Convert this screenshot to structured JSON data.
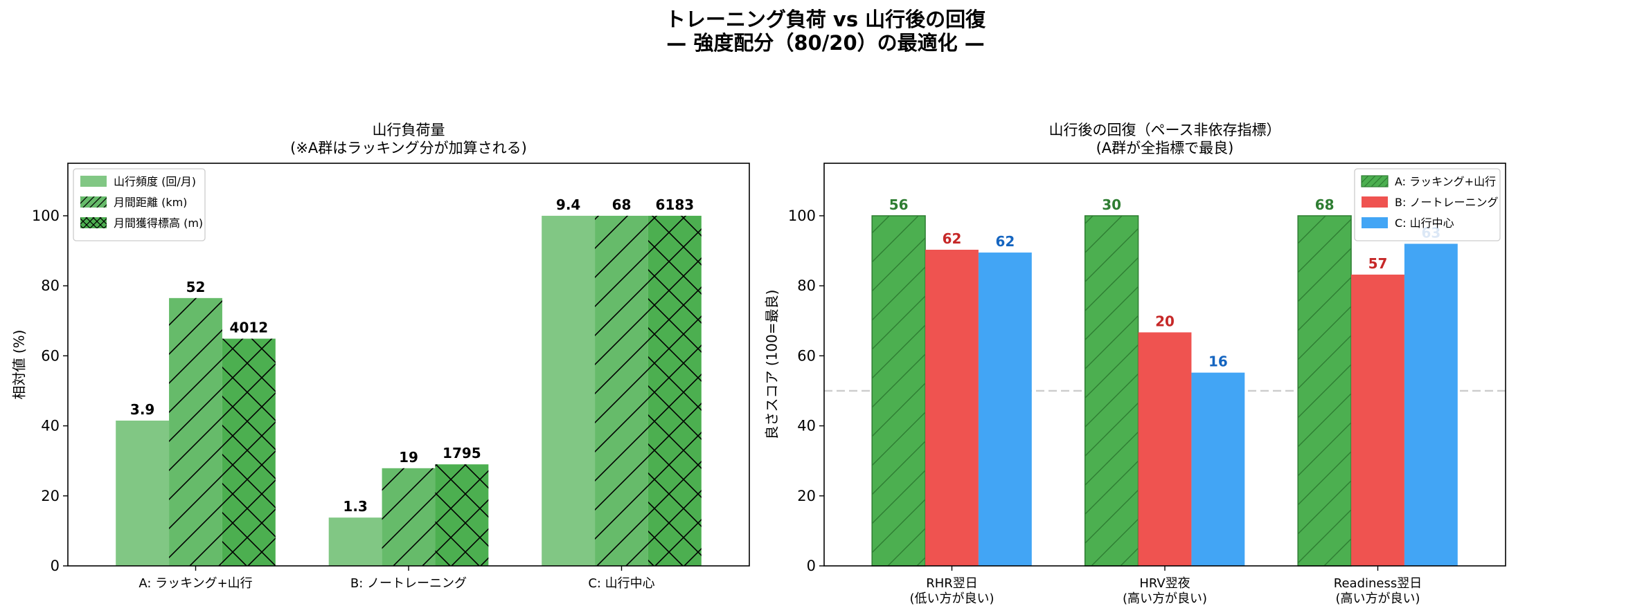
{
  "figure": {
    "title_line1": "トレーニング負荷 vs 山行後の回復",
    "title_line2": "— 強度配分（80/20）の最適化 —"
  },
  "chart_data": [
    {
      "type": "bar",
      "title_line1": "山行負荷量",
      "title_line2": "(※A群はラッキング分が加算される)",
      "xlabel": "",
      "ylabel": "相対値 (%)",
      "ylim": [
        0,
        115
      ],
      "yticks": [
        0,
        20,
        40,
        60,
        80,
        100
      ],
      "grid": false,
      "legend_position": "top-left",
      "categories": [
        "A: ラッキング+山行",
        "B: ノートレーニング",
        "C: 山行中心"
      ],
      "series": [
        {
          "name": "山行頻度 (回/月)",
          "values": [
            41.5,
            13.8,
            100
          ],
          "labels": [
            "3.9",
            "1.3",
            "9.4"
          ],
          "color": "#81c784",
          "hatch": "none"
        },
        {
          "name": "月間距離 (km)",
          "values": [
            76.5,
            27.9,
            100
          ],
          "labels": [
            "52",
            "19",
            "68"
          ],
          "color": "#66bb6a",
          "hatch": "diag"
        },
        {
          "name": "月間獲得標高 (m)",
          "values": [
            64.9,
            29.0,
            100
          ],
          "labels": [
            "4012",
            "1795",
            "6183"
          ],
          "color": "#4caf50",
          "hatch": "cross"
        }
      ]
    },
    {
      "type": "bar",
      "title_line1": "山行後の回復（ペース非依存指標）",
      "title_line2": "(A群が全指標で最良)",
      "xlabel": "",
      "ylabel": "良さスコア (100=最良)",
      "ylim": [
        0,
        115
      ],
      "yticks": [
        0,
        20,
        40,
        60,
        80,
        100
      ],
      "grid": false,
      "reference_line": 50,
      "legend_position": "top-right",
      "categories": [
        "RHR翌日\n(低い方が良い)",
        "HRV翌夜\n(高い方が良い)",
        "Readiness翌日\n(高い方が良い)"
      ],
      "series": [
        {
          "name": "A: ラッキング+山行",
          "values": [
            100,
            100,
            100
          ],
          "labels": [
            "56",
            "30",
            "68"
          ],
          "color": "#4caf50",
          "label_color": "#2e7d32",
          "hatch": "diag"
        },
        {
          "name": "B: ノートレーニング",
          "values": [
            90.3,
            66.7,
            83.2
          ],
          "labels": [
            "62",
            "20",
            "57"
          ],
          "color": "#ef5350",
          "label_color": "#c62828",
          "hatch": "none"
        },
        {
          "name": "C: 山行中心",
          "values": [
            89.5,
            55.2,
            92.0
          ],
          "labels": [
            "62",
            "16",
            "63"
          ],
          "color": "#42a5f5",
          "label_color": "#1565c0",
          "hatch": "none"
        }
      ]
    }
  ]
}
